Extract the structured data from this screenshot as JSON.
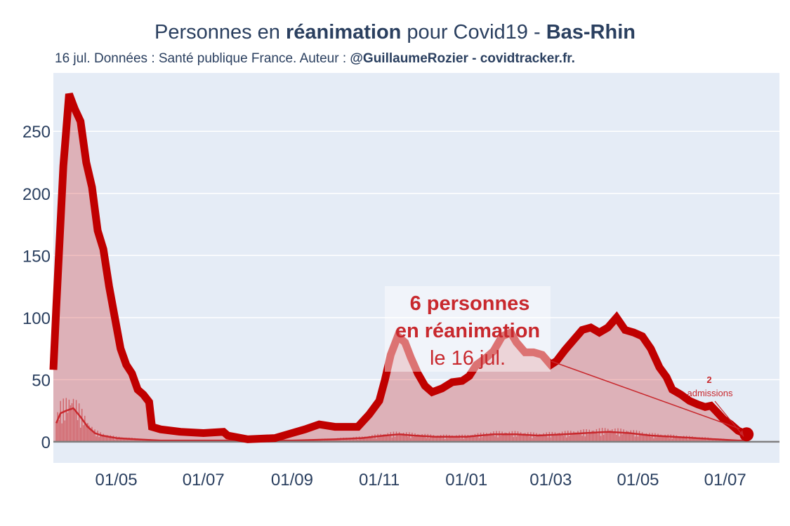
{
  "header": {
    "title_prefix": "Personnes en ",
    "title_bold1": "réanimation",
    "title_mid": " pour Covid19 - ",
    "title_bold2": "Bas-Rhin",
    "subtitle_prefix": "16 jul. Données : Santé publique France. Auteur : ",
    "subtitle_bold": "@GuillaumeRozier - covidtracker.fr."
  },
  "annotation": {
    "line1": "6 personnes",
    "line2": "en réanimation",
    "line3": "le 16 jul."
  },
  "admissions": {
    "count": "2",
    "label": "admissions"
  },
  "colors": {
    "plot_bg": "#e5ecf6",
    "line": "#c00000",
    "fill": "rgba(200,0,0,0.25)",
    "admissions": "#c8282d",
    "zero_line": "#7f7f7f"
  },
  "chart_data": {
    "type": "line",
    "title": "Personnes en réanimation pour Covid19 - Bas-Rhin",
    "xlabel": "",
    "ylabel": "",
    "ylim": [
      -17,
      297
    ],
    "yticks": [
      0,
      50,
      100,
      150,
      200,
      250
    ],
    "xlim": [
      "2020-03-18",
      "2021-08-08"
    ],
    "xticks": [
      {
        "date": "2020-05-01",
        "label": "01/05"
      },
      {
        "date": "2020-07-01",
        "label": "01/07"
      },
      {
        "date": "2020-09-01",
        "label": "01/09"
      },
      {
        "date": "2020-11-01",
        "label": "01/11"
      },
      {
        "date": "2021-01-01",
        "label": "01/01"
      },
      {
        "date": "2021-03-01",
        "label": "01/03"
      },
      {
        "date": "2021-05-01",
        "label": "01/05"
      },
      {
        "date": "2021-07-01",
        "label": "01/07"
      }
    ],
    "series": [
      {
        "name": "",
        "style": "thick-line-with-area",
        "points": [
          [
            "2020-03-18",
            58
          ],
          [
            "2020-03-20",
            108
          ],
          [
            "2020-03-25",
            222
          ],
          [
            "2020-03-29",
            280
          ],
          [
            "2020-04-02",
            268
          ],
          [
            "2020-04-06",
            258
          ],
          [
            "2020-04-10",
            225
          ],
          [
            "2020-04-14",
            205
          ],
          [
            "2020-04-18",
            170
          ],
          [
            "2020-04-22",
            155
          ],
          [
            "2020-04-26",
            125
          ],
          [
            "2020-04-30",
            100
          ],
          [
            "2020-05-04",
            75
          ],
          [
            "2020-05-08",
            62
          ],
          [
            "2020-05-12",
            55
          ],
          [
            "2020-05-16",
            42
          ],
          [
            "2020-05-20",
            38
          ],
          [
            "2020-05-24",
            32
          ],
          [
            "2020-05-26",
            12
          ],
          [
            "2020-06-01",
            10
          ],
          [
            "2020-06-15",
            8
          ],
          [
            "2020-07-01",
            7
          ],
          [
            "2020-07-15",
            8
          ],
          [
            "2020-07-18",
            5
          ],
          [
            "2020-08-01",
            2
          ],
          [
            "2020-08-20",
            3
          ],
          [
            "2020-09-01",
            7
          ],
          [
            "2020-09-10",
            10
          ],
          [
            "2020-09-20",
            14
          ],
          [
            "2020-10-01",
            12
          ],
          [
            "2020-10-10",
            12
          ],
          [
            "2020-10-17",
            12
          ],
          [
            "2020-10-25",
            22
          ],
          [
            "2020-11-01",
            33
          ],
          [
            "2020-11-05",
            50
          ],
          [
            "2020-11-09",
            70
          ],
          [
            "2020-11-14",
            85
          ],
          [
            "2020-11-19",
            80
          ],
          [
            "2020-11-23",
            68
          ],
          [
            "2020-11-28",
            55
          ],
          [
            "2020-12-03",
            45
          ],
          [
            "2020-12-08",
            40
          ],
          [
            "2020-12-15",
            43
          ],
          [
            "2020-12-22",
            48
          ],
          [
            "2020-12-29",
            49
          ],
          [
            "2021-01-03",
            53
          ],
          [
            "2021-01-08",
            62
          ],
          [
            "2021-01-14",
            67
          ],
          [
            "2021-01-20",
            73
          ],
          [
            "2021-01-26",
            85
          ],
          [
            "2021-02-01",
            88
          ],
          [
            "2021-02-05",
            80
          ],
          [
            "2021-02-11",
            72
          ],
          [
            "2021-02-17",
            72
          ],
          [
            "2021-02-23",
            70
          ],
          [
            "2021-03-01",
            62
          ],
          [
            "2021-03-05",
            65
          ],
          [
            "2021-03-11",
            74
          ],
          [
            "2021-03-17",
            82
          ],
          [
            "2021-03-23",
            90
          ],
          [
            "2021-03-29",
            92
          ],
          [
            "2021-04-04",
            88
          ],
          [
            "2021-04-10",
            92
          ],
          [
            "2021-04-16",
            100
          ],
          [
            "2021-04-22",
            90
          ],
          [
            "2021-04-28",
            88
          ],
          [
            "2021-05-04",
            85
          ],
          [
            "2021-05-10",
            75
          ],
          [
            "2021-05-16",
            60
          ],
          [
            "2021-05-21",
            52
          ],
          [
            "2021-05-25",
            42
          ],
          [
            "2021-05-31",
            38
          ],
          [
            "2021-06-06",
            33
          ],
          [
            "2021-06-12",
            30
          ],
          [
            "2021-06-17",
            28
          ],
          [
            "2021-06-21",
            29
          ],
          [
            "2021-06-26",
            23
          ],
          [
            "2021-06-30",
            18
          ],
          [
            "2021-07-05",
            14
          ],
          [
            "2021-07-10",
            9
          ],
          [
            "2021-07-16",
            6
          ]
        ]
      },
      {
        "name": "admissions",
        "style": "thin-line-with-bars",
        "points": [
          [
            "2020-03-20",
            15
          ],
          [
            "2020-03-23",
            23
          ],
          [
            "2020-03-27",
            25
          ],
          [
            "2020-04-01",
            27
          ],
          [
            "2020-04-06",
            20
          ],
          [
            "2020-04-11",
            12
          ],
          [
            "2020-04-16",
            7
          ],
          [
            "2020-04-21",
            5
          ],
          [
            "2020-05-01",
            3
          ],
          [
            "2020-05-15",
            2
          ],
          [
            "2020-06-01",
            1
          ],
          [
            "2020-07-01",
            1
          ],
          [
            "2020-08-01",
            1
          ],
          [
            "2020-09-01",
            1
          ],
          [
            "2020-10-01",
            2
          ],
          [
            "2020-10-20",
            3
          ],
          [
            "2020-11-05",
            5
          ],
          [
            "2020-11-15",
            6
          ],
          [
            "2020-11-25",
            5
          ],
          [
            "2020-12-10",
            4
          ],
          [
            "2021-01-01",
            4
          ],
          [
            "2021-01-20",
            6
          ],
          [
            "2021-02-05",
            6
          ],
          [
            "2021-02-20",
            5
          ],
          [
            "2021-03-10",
            6
          ],
          [
            "2021-03-25",
            7
          ],
          [
            "2021-04-10",
            8
          ],
          [
            "2021-04-25",
            7
          ],
          [
            "2021-05-10",
            5
          ],
          [
            "2021-05-25",
            4
          ],
          [
            "2021-06-10",
            3
          ],
          [
            "2021-06-25",
            2
          ],
          [
            "2021-07-10",
            1
          ],
          [
            "2021-07-16",
            1
          ]
        ]
      }
    ],
    "grid": "y-only",
    "legend": "none"
  }
}
